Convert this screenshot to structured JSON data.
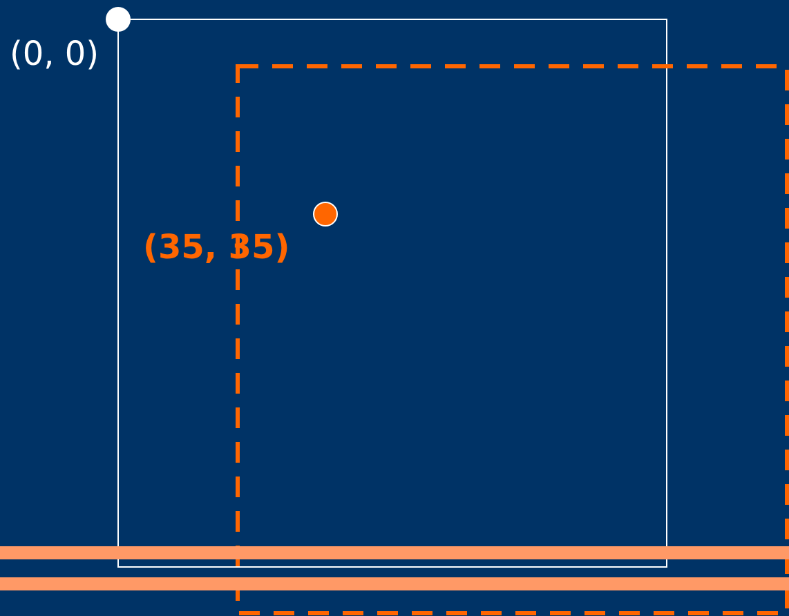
{
  "colors": {
    "background": "#003366",
    "white": "#FFFFFF",
    "accent": "#FF6600",
    "stripe": "#FF9966"
  },
  "labels": {
    "origin": "(0, 0)",
    "point": "(35, 35)"
  }
}
